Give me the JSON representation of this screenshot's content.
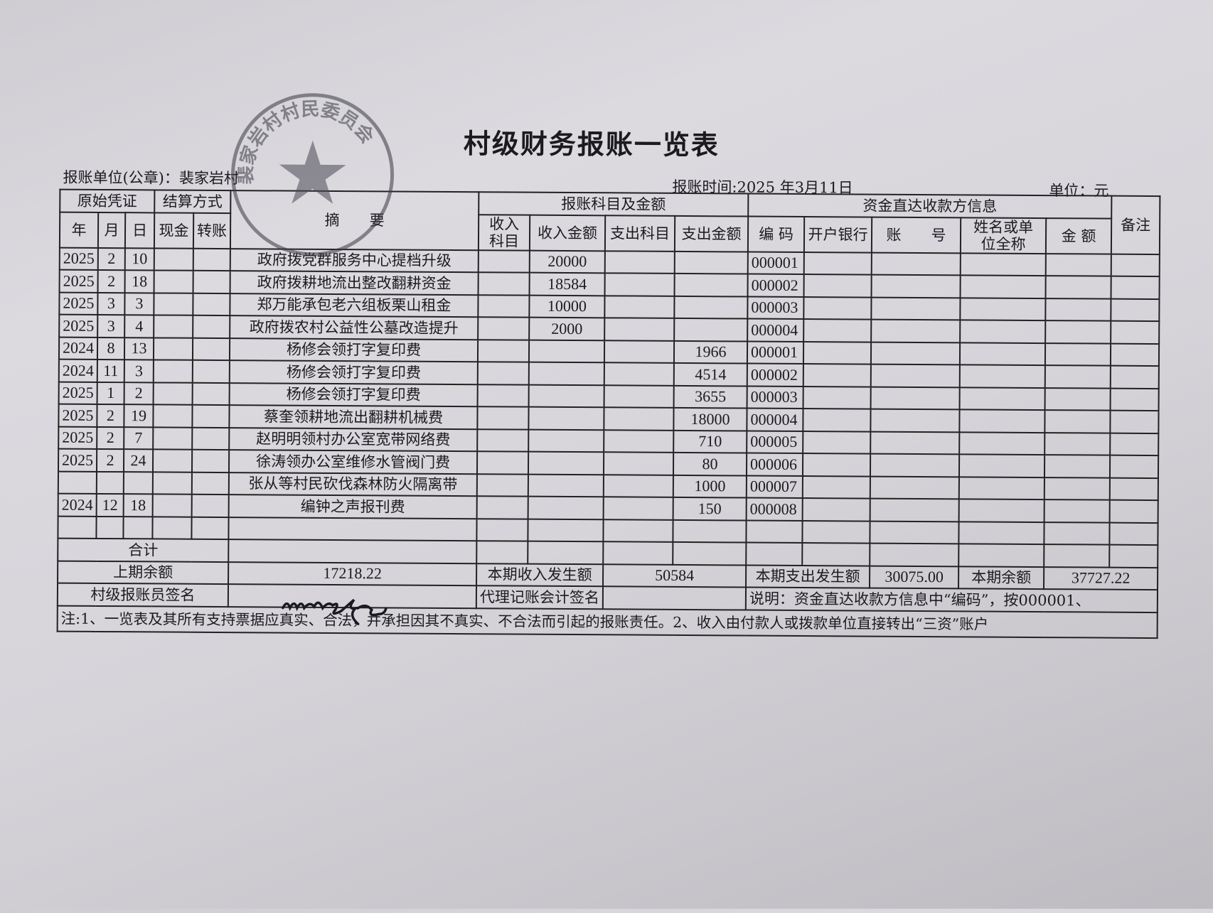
{
  "title": "村级财务报账一览表",
  "unit_label": "报账单位(公章)：裴家岩村",
  "report_time": "报账时间:2025 年3月11日",
  "currency": "单位：元",
  "stamp_text": "裴家岩村村民委员会",
  "headers": {
    "voucher": "原始凭证",
    "settlement": "结算方式",
    "year": "年",
    "month": "月",
    "day": "日",
    "cash": "现金",
    "transfer": "转账",
    "summary": "摘　　要",
    "accounts": "报账科目及金额",
    "income_subject": "收入科目",
    "income_amount": "收入金额",
    "expense_subject": "支出科目",
    "expense_amount": "支出金额",
    "payee_info": "资金直达收款方信息",
    "code": "编 码",
    "bank": "开户银行",
    "account_no": "账　　号",
    "payee_name": "姓名或单位全称",
    "amount": "金 额",
    "remark": "备注"
  },
  "rows": [
    {
      "year": "2025",
      "month": "2",
      "day": "10",
      "summary": "政府拨党群服务中心提档升级",
      "income": "20000",
      "expense": "",
      "code": "000001"
    },
    {
      "year": "2025",
      "month": "2",
      "day": "18",
      "summary": "政府拨耕地流出整改翻耕资金",
      "income": "18584",
      "expense": "",
      "code": "000002"
    },
    {
      "year": "2025",
      "month": "3",
      "day": "3",
      "summary": "郑万能承包老六组板栗山租金",
      "income": "10000",
      "expense": "",
      "code": "000003"
    },
    {
      "year": "2025",
      "month": "3",
      "day": "4",
      "summary": "政府拨农村公益性公墓改造提升",
      "income": "2000",
      "expense": "",
      "code": "000004"
    },
    {
      "year": "2024",
      "month": "8",
      "day": "13",
      "summary": "杨修会领打字复印费",
      "income": "",
      "expense": "1966",
      "code": "000001"
    },
    {
      "year": "2024",
      "month": "11",
      "day": "3",
      "summary": "杨修会领打字复印费",
      "income": "",
      "expense": "4514",
      "code": "000002"
    },
    {
      "year": "2025",
      "month": "1",
      "day": "2",
      "summary": "杨修会领打字复印费",
      "income": "",
      "expense": "3655",
      "code": "000003"
    },
    {
      "year": "2025",
      "month": "2",
      "day": "19",
      "summary": "蔡奎领耕地流出翻耕机械费",
      "income": "",
      "expense": "18000",
      "code": "000004"
    },
    {
      "year": "2025",
      "month": "2",
      "day": "7",
      "summary": "赵明明领村办公室宽带网络费",
      "income": "",
      "expense": "710",
      "code": "000005"
    },
    {
      "year": "2025",
      "month": "2",
      "day": "24",
      "summary": "徐涛领办公室维修水管阀门费",
      "income": "",
      "expense": "80",
      "code": "000006"
    },
    {
      "year": "",
      "month": "",
      "day": "",
      "summary": "张从等村民砍伐森林防火隔离带",
      "income": "",
      "expense": "1000",
      "code": "000007"
    },
    {
      "year": "2024",
      "month": "12",
      "day": "18",
      "summary": "编钟之声报刊费",
      "income": "",
      "expense": "150",
      "code": "000008"
    },
    {
      "year": "",
      "month": "",
      "day": "",
      "summary": "",
      "income": "",
      "expense": "",
      "code": ""
    }
  ],
  "footer": {
    "total_label": "合计",
    "prev_balance_label": "上期余额",
    "prev_balance": "17218.22",
    "period_income_label": "本期收入发生额",
    "period_income": "50584",
    "period_expense_label": "本期支出发生额",
    "period_expense": "30075.00",
    "balance_label": "本期余额",
    "balance": "37727.22",
    "clerk_sign_label": "村级报账员签名",
    "accountant_sign_label": "代理记账会计签名",
    "explanation": "说明：资金直达收款方信息中“编码”，按000001、",
    "note": "注:1、一览表及其所有支持票据应真实、合法，并承担因其不真实、不合法而引起的报账责任。2、收入由付款人或拨款单位直接转出“三资”账户"
  }
}
